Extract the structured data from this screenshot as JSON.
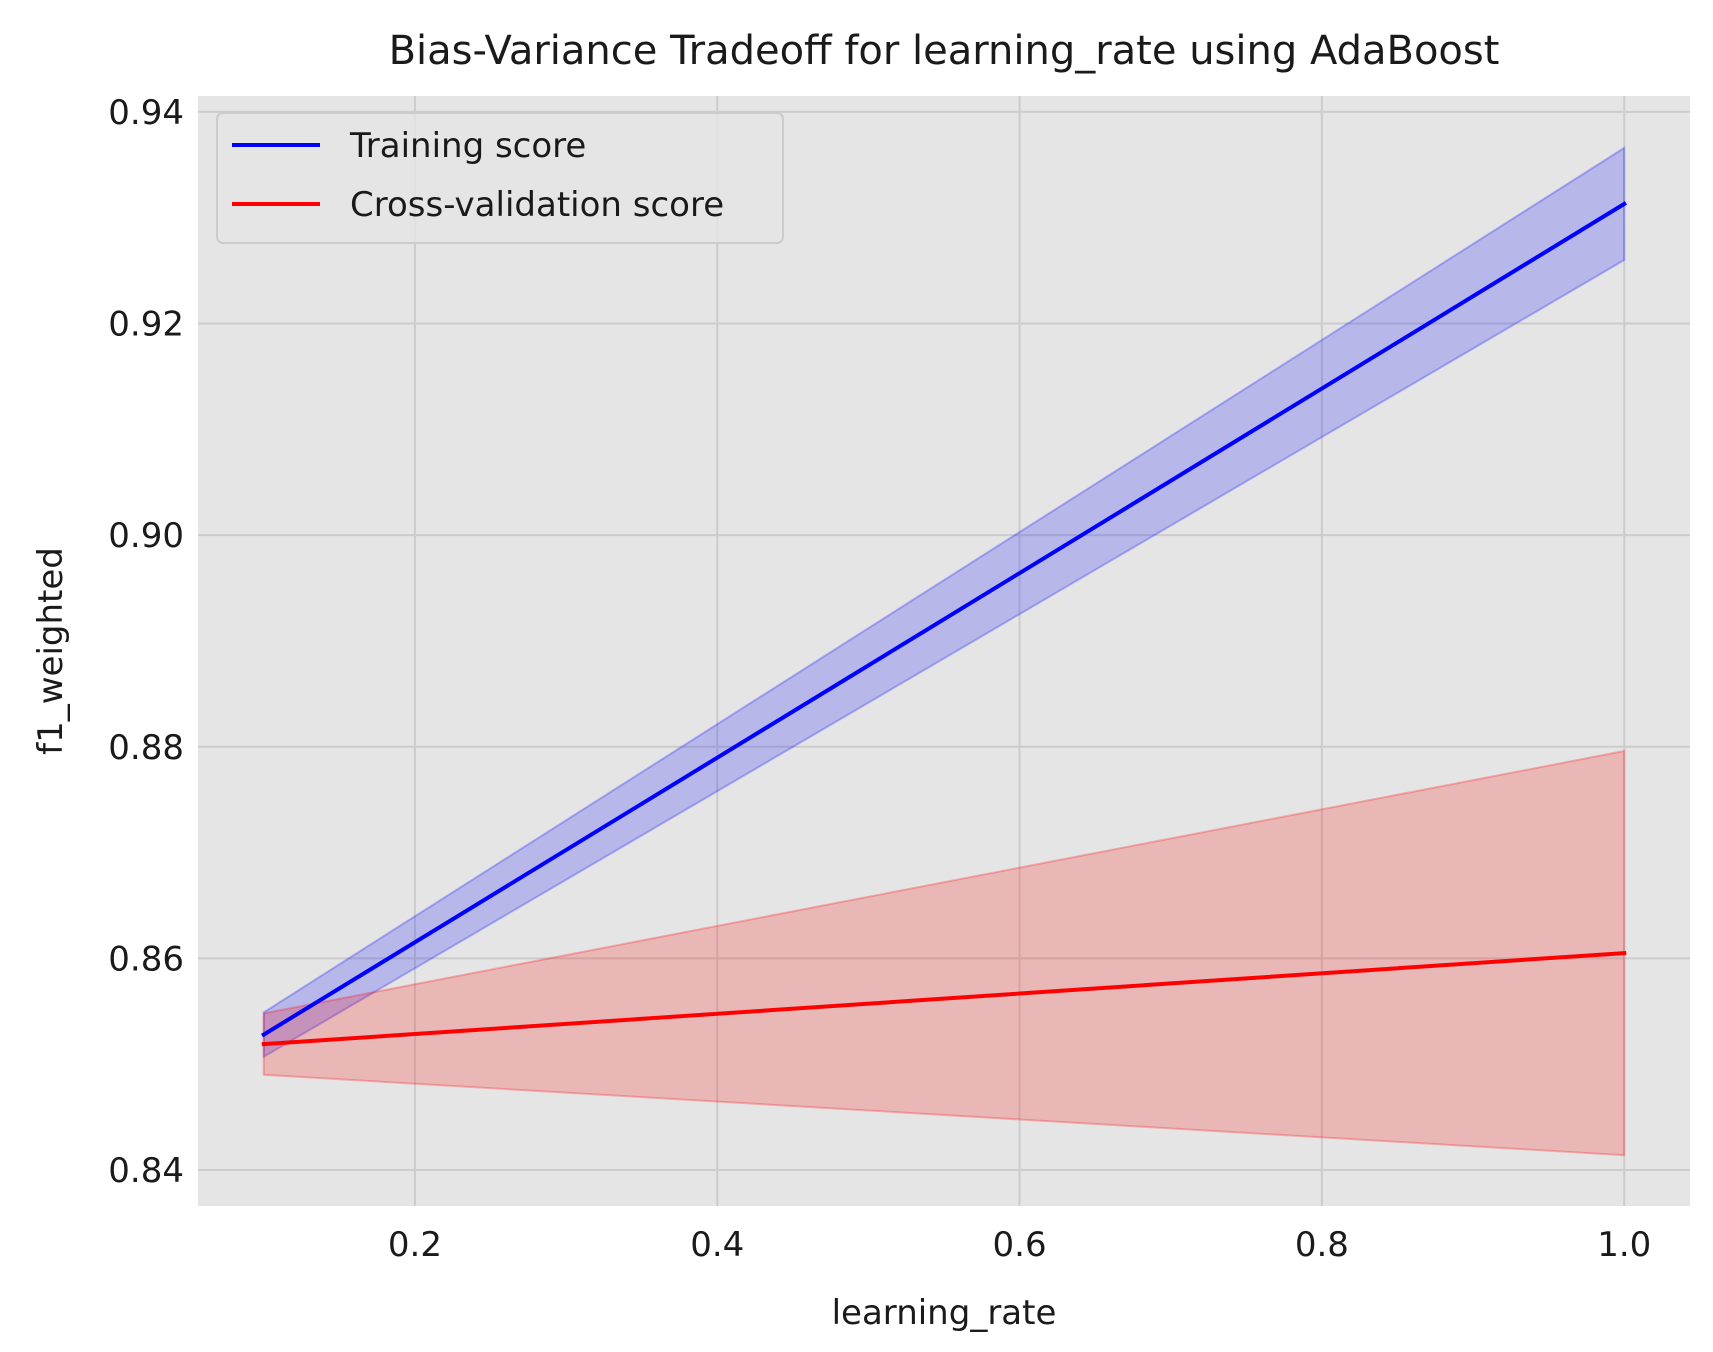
{
  "chart_data": {
    "type": "line",
    "title": "Bias-Variance Tradeoff for learning_rate using AdaBoost",
    "xlabel": "learning_rate",
    "ylabel": "f1_weighted",
    "xlim": [
      0.0565,
      1.0435
    ],
    "ylim": [
      0.8366,
      0.9415
    ],
    "xticks": [
      0.2,
      0.4,
      0.6,
      0.8,
      1.0
    ],
    "xtick_labels": [
      "0.2",
      "0.4",
      "0.6",
      "0.8",
      "1.0"
    ],
    "yticks": [
      0.84,
      0.86,
      0.88,
      0.9,
      0.92,
      0.94
    ],
    "ytick_labels": [
      "0.84",
      "0.86",
      "0.88",
      "0.90",
      "0.92",
      "0.94"
    ],
    "grid": true,
    "legend_position": "top-left",
    "x": [
      0.1,
      1.0
    ],
    "series": [
      {
        "name": "Training score",
        "color": "#0000ff",
        "values": [
          0.8528,
          0.9313
        ],
        "band_lower": [
          0.8507,
          0.926
        ],
        "band_upper": [
          0.8549,
          0.9366
        ]
      },
      {
        "name": "Cross-validation score",
        "color": "#ff0000",
        "values": [
          0.8519,
          0.8605
        ],
        "band_lower": [
          0.849,
          0.8414
        ],
        "band_upper": [
          0.8548,
          0.8796
        ]
      }
    ]
  },
  "colors": {
    "plot_background": "#e5e5e5",
    "grid": "#cccccc"
  }
}
